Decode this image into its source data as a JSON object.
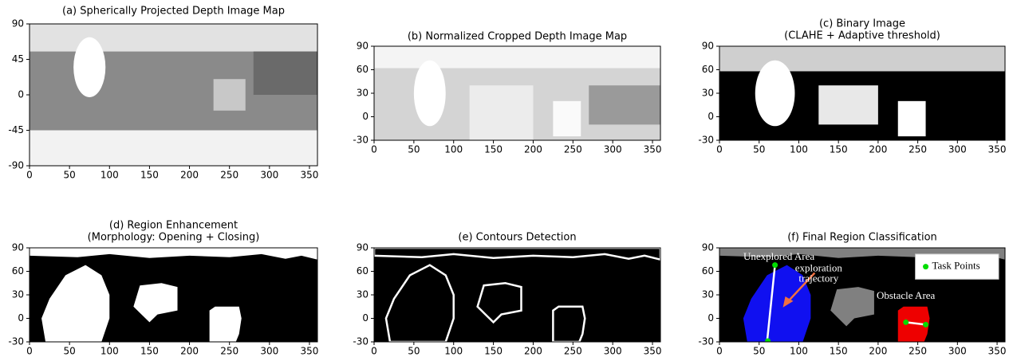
{
  "chart_data": [
    {
      "type": "image",
      "title": "(a) Spherically Projected Depth Image Map",
      "xlim": [
        0,
        360
      ],
      "ylim": [
        -90,
        90
      ],
      "xticks": [
        0,
        50,
        100,
        150,
        200,
        250,
        300,
        350
      ],
      "yticks": [
        -90,
        -45,
        0,
        45,
        90
      ]
    },
    {
      "type": "image",
      "title": "(b) Normalized Cropped Depth Image Map",
      "xlim": [
        0,
        360
      ],
      "ylim": [
        -30,
        90
      ],
      "xticks": [
        0,
        50,
        100,
        150,
        200,
        250,
        300,
        350
      ],
      "yticks": [
        -30,
        0,
        30,
        60,
        90
      ]
    },
    {
      "type": "image",
      "title": "(c) Binary Image",
      "subtitle": "(CLAHE + Adaptive threshold)",
      "xlim": [
        0,
        360
      ],
      "ylim": [
        -30,
        90
      ],
      "xticks": [
        0,
        50,
        100,
        150,
        200,
        250,
        300,
        350
      ],
      "yticks": [
        -30,
        0,
        30,
        60,
        90
      ]
    },
    {
      "type": "image",
      "title": "(d) Region Enhancement",
      "subtitle": "(Morphology: Opening + Closing)",
      "xlim": [
        0,
        360
      ],
      "ylim": [
        -30,
        90
      ],
      "xticks": [
        0,
        50,
        100,
        150,
        200,
        250,
        300,
        350
      ],
      "yticks": [
        -30,
        0,
        30,
        60,
        90
      ]
    },
    {
      "type": "image",
      "title": "(e) Contours Detection",
      "xlim": [
        0,
        360
      ],
      "ylim": [
        -30,
        90
      ],
      "xticks": [
        0,
        50,
        100,
        150,
        200,
        250,
        300,
        350
      ],
      "yticks": [
        -30,
        0,
        30,
        60,
        90
      ]
    },
    {
      "type": "image",
      "title": "(f) Final Region Classification",
      "xlim": [
        0,
        360
      ],
      "ylim": [
        -30,
        90
      ],
      "xticks": [
        0,
        50,
        100,
        150,
        200,
        250,
        300,
        350
      ],
      "yticks": [
        -30,
        0,
        30,
        60,
        90
      ],
      "annotations": [
        "Unexplored Area",
        "exploration",
        "trajectory",
        "Obstacle Area"
      ],
      "legend": {
        "label": "Task Points",
        "color": "#00dd00"
      }
    }
  ]
}
